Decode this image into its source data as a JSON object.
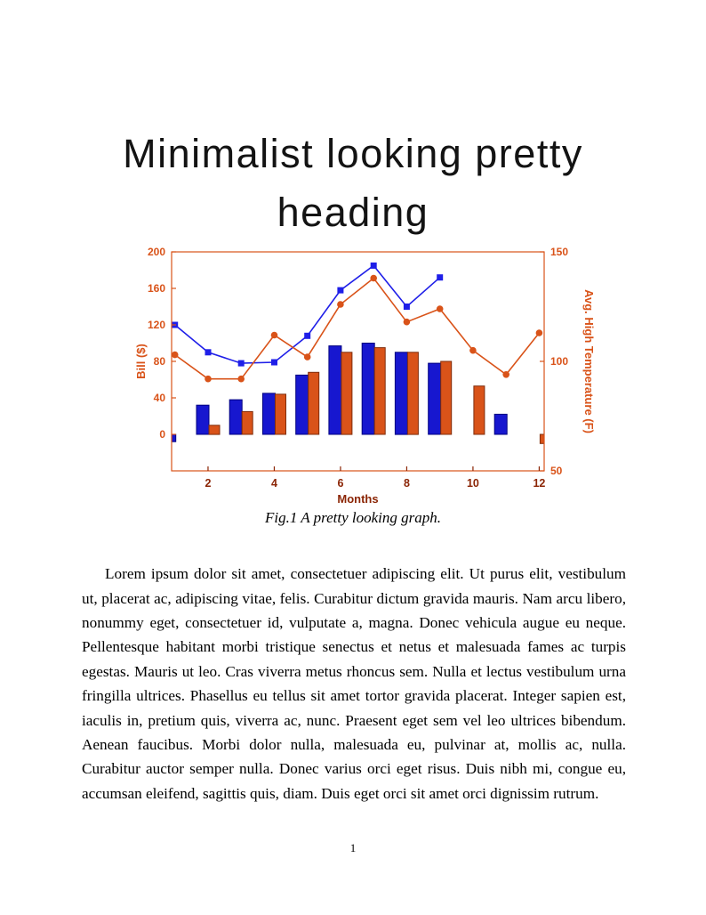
{
  "page": {
    "number": "1"
  },
  "heading": {
    "lines": [
      "Minimalist looking pretty",
      "heading"
    ]
  },
  "figure": {
    "caption": "Fig.1 A pretty looking graph."
  },
  "body": {
    "paragraph": "Lorem ipsum dolor sit amet, consectetuer adipiscing elit. Ut purus elit, vestibulum ut, placerat ac, adipiscing vitae, felis. Curabitur dictum gravida mauris. Nam arcu libero, nonummy eget, consectetuer id, vulputate a, magna. Donec vehicula augue eu neque. Pellentesque habitant morbi tristique senectus et netus et malesuada fames ac turpis egestas. Mauris ut leo. Cras viverra metus rhoncus sem. Nulla et lectus vestibulum urna fringilla ultrices. Phasellus eu tellus sit amet tortor gravida placerat. Integer sapien est, iaculis in, pretium quis, viverra ac, nunc. Praesent eget sem vel leo ultrices bibendum. Aenean faucibus. Morbi dolor nulla, malesuada eu, pulvinar at, mollis ac, nulla. Curabitur auctor semper nulla. Donec varius orci eget risus. Duis nibh mi, congue eu, accumsan eleifend, sagittis quis, diam. Duis eget orci sit amet orci dignissim rutrum."
  },
  "chart_data": {
    "type": "combo",
    "title": "",
    "xlabel": "Months",
    "x": [
      1,
      2,
      3,
      4,
      5,
      6,
      7,
      8,
      9,
      10,
      11,
      12
    ],
    "xlim": [
      0.9,
      12.15
    ],
    "x_ticks": [
      2,
      4,
      6,
      8,
      10,
      12
    ],
    "x_axis_color": "#8B2505",
    "grid": false,
    "legend": "none",
    "left_axis": {
      "label": "Bill ($)",
      "range": [
        -40,
        200
      ],
      "ticks": [
        0,
        40,
        80,
        120,
        160,
        200
      ],
      "color": "#D95319"
    },
    "right_axis": {
      "label": "Avg. High Temperature (F)",
      "range": [
        50,
        150
      ],
      "ticks": [
        50,
        100,
        150
      ],
      "color": "#D95319"
    },
    "series": [
      {
        "name": "bill-bars-blue",
        "type": "bar",
        "axis": "left",
        "color": "#1717CF",
        "edge": "#00007F",
        "values": [
          -8,
          32,
          38,
          45,
          65,
          97,
          100,
          90,
          78,
          null,
          22,
          null
        ]
      },
      {
        "name": "bill-bars-orange",
        "type": "bar",
        "axis": "left",
        "color": "#D95319",
        "edge": "#7F2D0C",
        "values": [
          null,
          10,
          25,
          44,
          68,
          90,
          95,
          90,
          80,
          53,
          null,
          -10
        ]
      },
      {
        "name": "bill-line-blue",
        "type": "line",
        "axis": "left",
        "marker": "square",
        "color": "#1F1FE8",
        "values": [
          120,
          90,
          78,
          79,
          108,
          158,
          185,
          140,
          172,
          null,
          null,
          null
        ]
      },
      {
        "name": "temp-line-orange",
        "type": "line",
        "axis": "right",
        "marker": "circle",
        "color": "#D95319",
        "values": [
          103,
          92,
          92,
          112,
          102,
          126,
          138,
          118,
          124,
          105,
          94,
          113
        ]
      }
    ]
  }
}
